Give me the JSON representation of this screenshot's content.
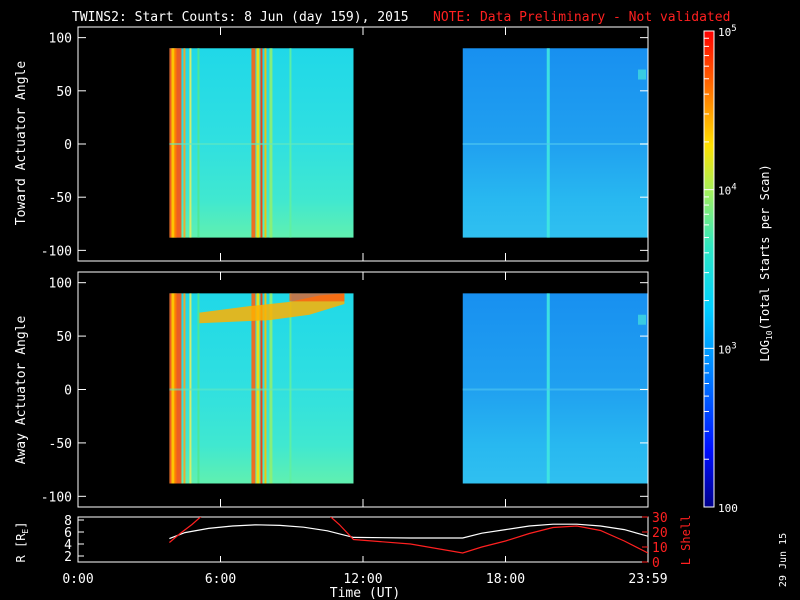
{
  "header": {
    "title": "TWINS2: Start Counts:  8 Jun (day 159), 2015",
    "note": "NOTE: Data Preliminary - Not validated"
  },
  "stamp": "29 Jun 15",
  "colors": {
    "background": "#000000",
    "axes": "#ffffff",
    "note": "#ff2020",
    "lshell_line": "#ff2020",
    "r_line": "#ffffff"
  },
  "chart_data": [
    {
      "type": "heatmap",
      "name": "toward",
      "ylabel": "Toward Actuator Angle",
      "x_range_hours": [
        0,
        24
      ],
      "ylim": [
        -110,
        110
      ],
      "yticks": [
        "100",
        "50",
        "0",
        "-50",
        "-100"
      ],
      "data_blocks": [
        {
          "x_start_hours": 3.85,
          "x_end_hours": 11.6,
          "y_range": [
            -88,
            90
          ]
        },
        {
          "x_start_hours": 16.2,
          "x_end_hours": 24.0,
          "y_range": [
            -88,
            90
          ]
        }
      ]
    },
    {
      "type": "heatmap",
      "name": "away",
      "ylabel": "Away Actuator Angle",
      "x_range_hours": [
        0,
        24
      ],
      "ylim": [
        -110,
        110
      ],
      "yticks": [
        "100",
        "50",
        "0",
        "-50",
        "-100"
      ],
      "data_blocks": [
        {
          "x_start_hours": 3.85,
          "x_end_hours": 11.6,
          "y_range": [
            -88,
            90
          ]
        },
        {
          "x_start_hours": 16.2,
          "x_end_hours": 24.0,
          "y_range": [
            -88,
            90
          ]
        }
      ]
    },
    {
      "type": "line",
      "name": "orbit",
      "xlabel": "Time (UT)",
      "xticks": [
        "0:00",
        "6:00",
        "12:00",
        "18:00",
        "23:59"
      ],
      "ylabel_left": "R [R",
      "ylabel_left_sub": "E",
      "ylabel_left_end": "]",
      "ylim_left": [
        1,
        8.5
      ],
      "yticks_left": [
        "8",
        "6",
        "4",
        "2"
      ],
      "ylabel_right": "L Shell",
      "ylim_right": [
        0,
        30
      ],
      "yticks_right": [
        "30",
        "20",
        "10",
        "0"
      ],
      "series": [
        {
          "key": "R",
          "x": [
            3.85,
            4.5,
            5.5,
            6.5,
            7.5,
            8.5,
            9.5,
            10.5,
            11.6,
            14,
            16.2,
            17,
            18,
            19,
            20,
            21,
            22,
            23,
            24
          ],
          "y": [
            4.9,
            5.9,
            6.6,
            7.0,
            7.2,
            7.1,
            6.8,
            6.2,
            5.1,
            5.0,
            5.0,
            5.8,
            6.4,
            7.0,
            7.3,
            7.3,
            7.0,
            6.4,
            5.3
          ]
        },
        {
          "key": "LShell",
          "axis": "right",
          "x": [
            3.85,
            4.3,
            4.8,
            5.3,
            10.5,
            11.0,
            11.6,
            14,
            16.2,
            17,
            18,
            19,
            20,
            21,
            22,
            23,
            24
          ],
          "y": [
            13,
            19,
            25,
            32,
            32,
            25,
            15,
            12,
            6,
            10,
            14,
            19,
            23,
            24,
            21,
            14,
            6
          ]
        }
      ]
    }
  ],
  "colorbar": {
    "label_main": "LOG",
    "label_sub": "10",
    "label_rest": "(Total Starts per Scan)",
    "ticks": [
      {
        "base": "10",
        "exp": "5",
        "value": 5
      },
      {
        "base": "10",
        "exp": "4",
        "value": 4
      },
      {
        "base": "10",
        "exp": "3",
        "value": 3
      },
      {
        "base": "100",
        "exp": "",
        "value": 2
      }
    ],
    "range": [
      2,
      5
    ]
  }
}
